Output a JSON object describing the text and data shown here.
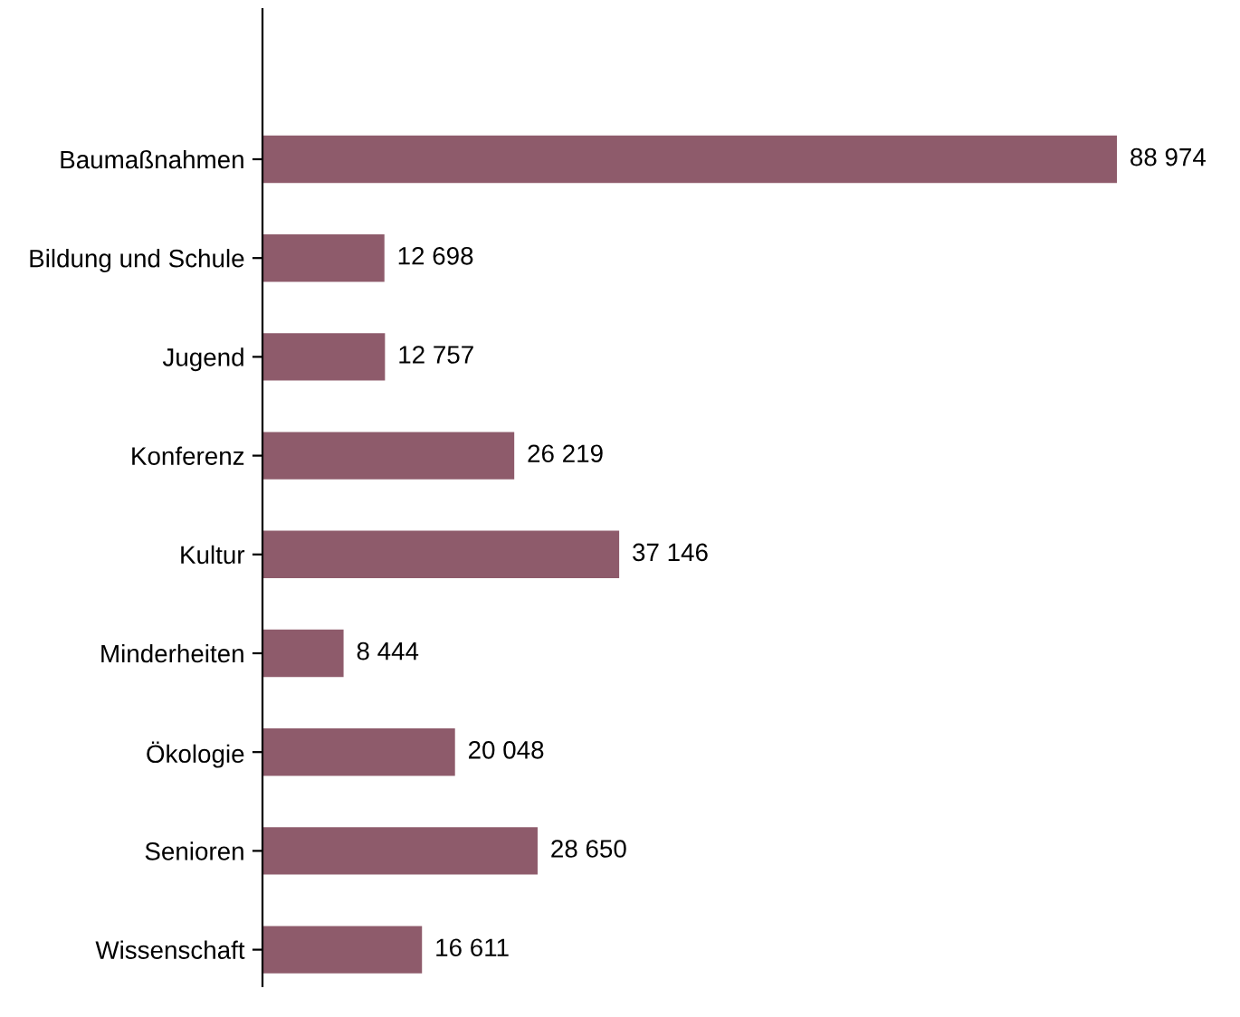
{
  "chart_data": {
    "type": "bar",
    "orientation": "horizontal",
    "tick_labels": "y",
    "categories": [
      "Baumaßnahmen",
      "Bildung und Schule",
      "Jugend",
      "Konferenz",
      "Kultur",
      "Minderheiten",
      "Ökologie",
      "Senioren",
      "Wissenschaft"
    ],
    "values": [
      88974,
      12698,
      12757,
      26219,
      37146,
      8444,
      20048,
      28650,
      16611
    ],
    "value_labels": [
      "88 974",
      "12 698",
      "12 757",
      "26 219",
      "37 146",
      "8 444",
      "20 048",
      "28 650",
      "16 611"
    ],
    "color": "#8e5b6b"
  }
}
